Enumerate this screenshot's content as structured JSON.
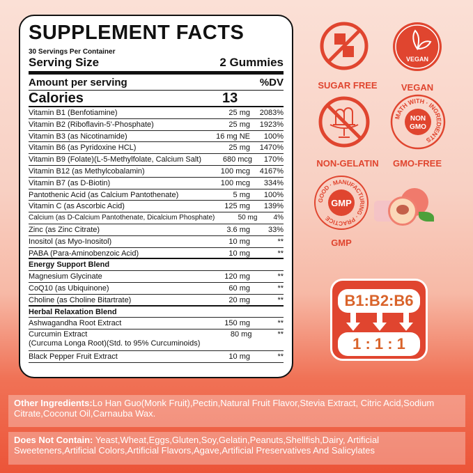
{
  "facts": {
    "title": "SUPPLEMENT FACTS",
    "servings_per_container": "30 Servings Per Container",
    "serving_size_label": "Serving Size",
    "serving_size_value": "2 Gummies",
    "amount_label": "Amount per serving",
    "dv_label": "%DV",
    "calories_label": "Calories",
    "calories_value": "13",
    "rows": [
      {
        "name": "Vitamin B1 (Benfotiamine)",
        "amount": "25 mg",
        "dv": "2083%"
      },
      {
        "name": "Vitamin B2 (Riboflavin-5'-Phosphate)",
        "amount": "25 mg",
        "dv": "1923%"
      },
      {
        "name": "Vitamin B3 (as Nicotinamide)",
        "amount": "16 mg NE",
        "dv": "100%"
      },
      {
        "name": "Vitamin B6 (as Pyridoxine HCL)",
        "amount": "25 mg",
        "dv": "1470%"
      },
      {
        "name": "Vitamin B9 (Folate)(L-5-Methylfolate, Calcium Salt)",
        "amount": "680 mcg",
        "dv": "170%"
      },
      {
        "name": "Vitamin B12 (as Methylcobalamin)",
        "amount": "100 mcg",
        "dv": "4167%"
      },
      {
        "name": "Vitamin B7 (as D-Biotin)",
        "amount": "100 mcg",
        "dv": "334%"
      },
      {
        "name": "Pantothenic Acid (as Calcium Pantothenate)",
        "amount": "5 mg",
        "dv": "100%"
      },
      {
        "name": "Vitamin C (as Ascorbic Acid)",
        "amount": "125 mg",
        "dv": "139%"
      },
      {
        "name": "Calcium (as D-Calcium Pantothenate, Dicalcium Phosphate)",
        "amount": "50 mg",
        "dv": "4%"
      },
      {
        "name": "Zinc (as Zinc Citrate)",
        "amount": "3.6 mg",
        "dv": "33%"
      },
      {
        "name": "Inositol (as Myo-Inositol)",
        "amount": "10 mg",
        "dv": "**"
      },
      {
        "name": "PABA (Para-Aminobenzoic Acid)",
        "amount": "10 mg",
        "dv": "**"
      },
      {
        "name": "Energy Support Blend",
        "amount": "",
        "dv": ""
      },
      {
        "name": "Magnesium Glycinate",
        "amount": "120 mg",
        "dv": "**"
      },
      {
        "name": "CoQ10 (as Ubiquinone)",
        "amount": "60 mg",
        "dv": "**"
      },
      {
        "name": "Choline (as Choline Bitartrate)",
        "amount": "20 mg",
        "dv": "**"
      },
      {
        "name": "Herbal Relaxation Blend",
        "amount": "",
        "dv": ""
      },
      {
        "name": "Ashwagandha Root Extract",
        "amount": "150 mg",
        "dv": "**"
      },
      {
        "name": "Curcumin Extract",
        "name2": "(Curcuma Longa Root)(Std. to 95% Curcuminoids)",
        "amount": "80 mg",
        "dv": "**"
      },
      {
        "name": "Black Pepper Fruit Extract",
        "amount": "10 mg",
        "dv": "**"
      }
    ]
  },
  "badges": {
    "sugar_free": "SUGAR FREE",
    "vegan": "VEGAN",
    "vegan_inner": "VEGAN",
    "non_gelatin": "NON-GELATIN",
    "gmo_free": "GMO-FREE",
    "gmo_ring": "MATH WITH · INGREDIENTS",
    "gmo_inner1": "NON",
    "gmo_inner2": "GMO",
    "gmp": "GMP",
    "gmp_inner": "GMP",
    "gmp_ring": "GOOD · MANUFACTURING · PRACTICE"
  },
  "ratio": {
    "top": "B1:B2:B6",
    "bottom": "1 : 1 : 1"
  },
  "ingredients": {
    "other_label": "Other Ingredients:",
    "other_text": "Lo Han Guo(Monk Fruit),Pectin,Natural Fruit Flavor,Stevia Extract, Citric Acid,Sodium Citrate,Coconut Oil,Carnauba Wax.",
    "not_label": "Does Not Contain:",
    "not_text": " Yeast,Wheat,Eggs,Gluten,Soy,Gelatin,Peanuts,Shellfish,Dairy, Artificial Sweeteners,Artificial Colors,Artificial Flavors,Agave,Artificial Preservatives And Salicylates"
  },
  "colors": {
    "accent": "#e0452f",
    "ratio_text": "#d9632a"
  }
}
